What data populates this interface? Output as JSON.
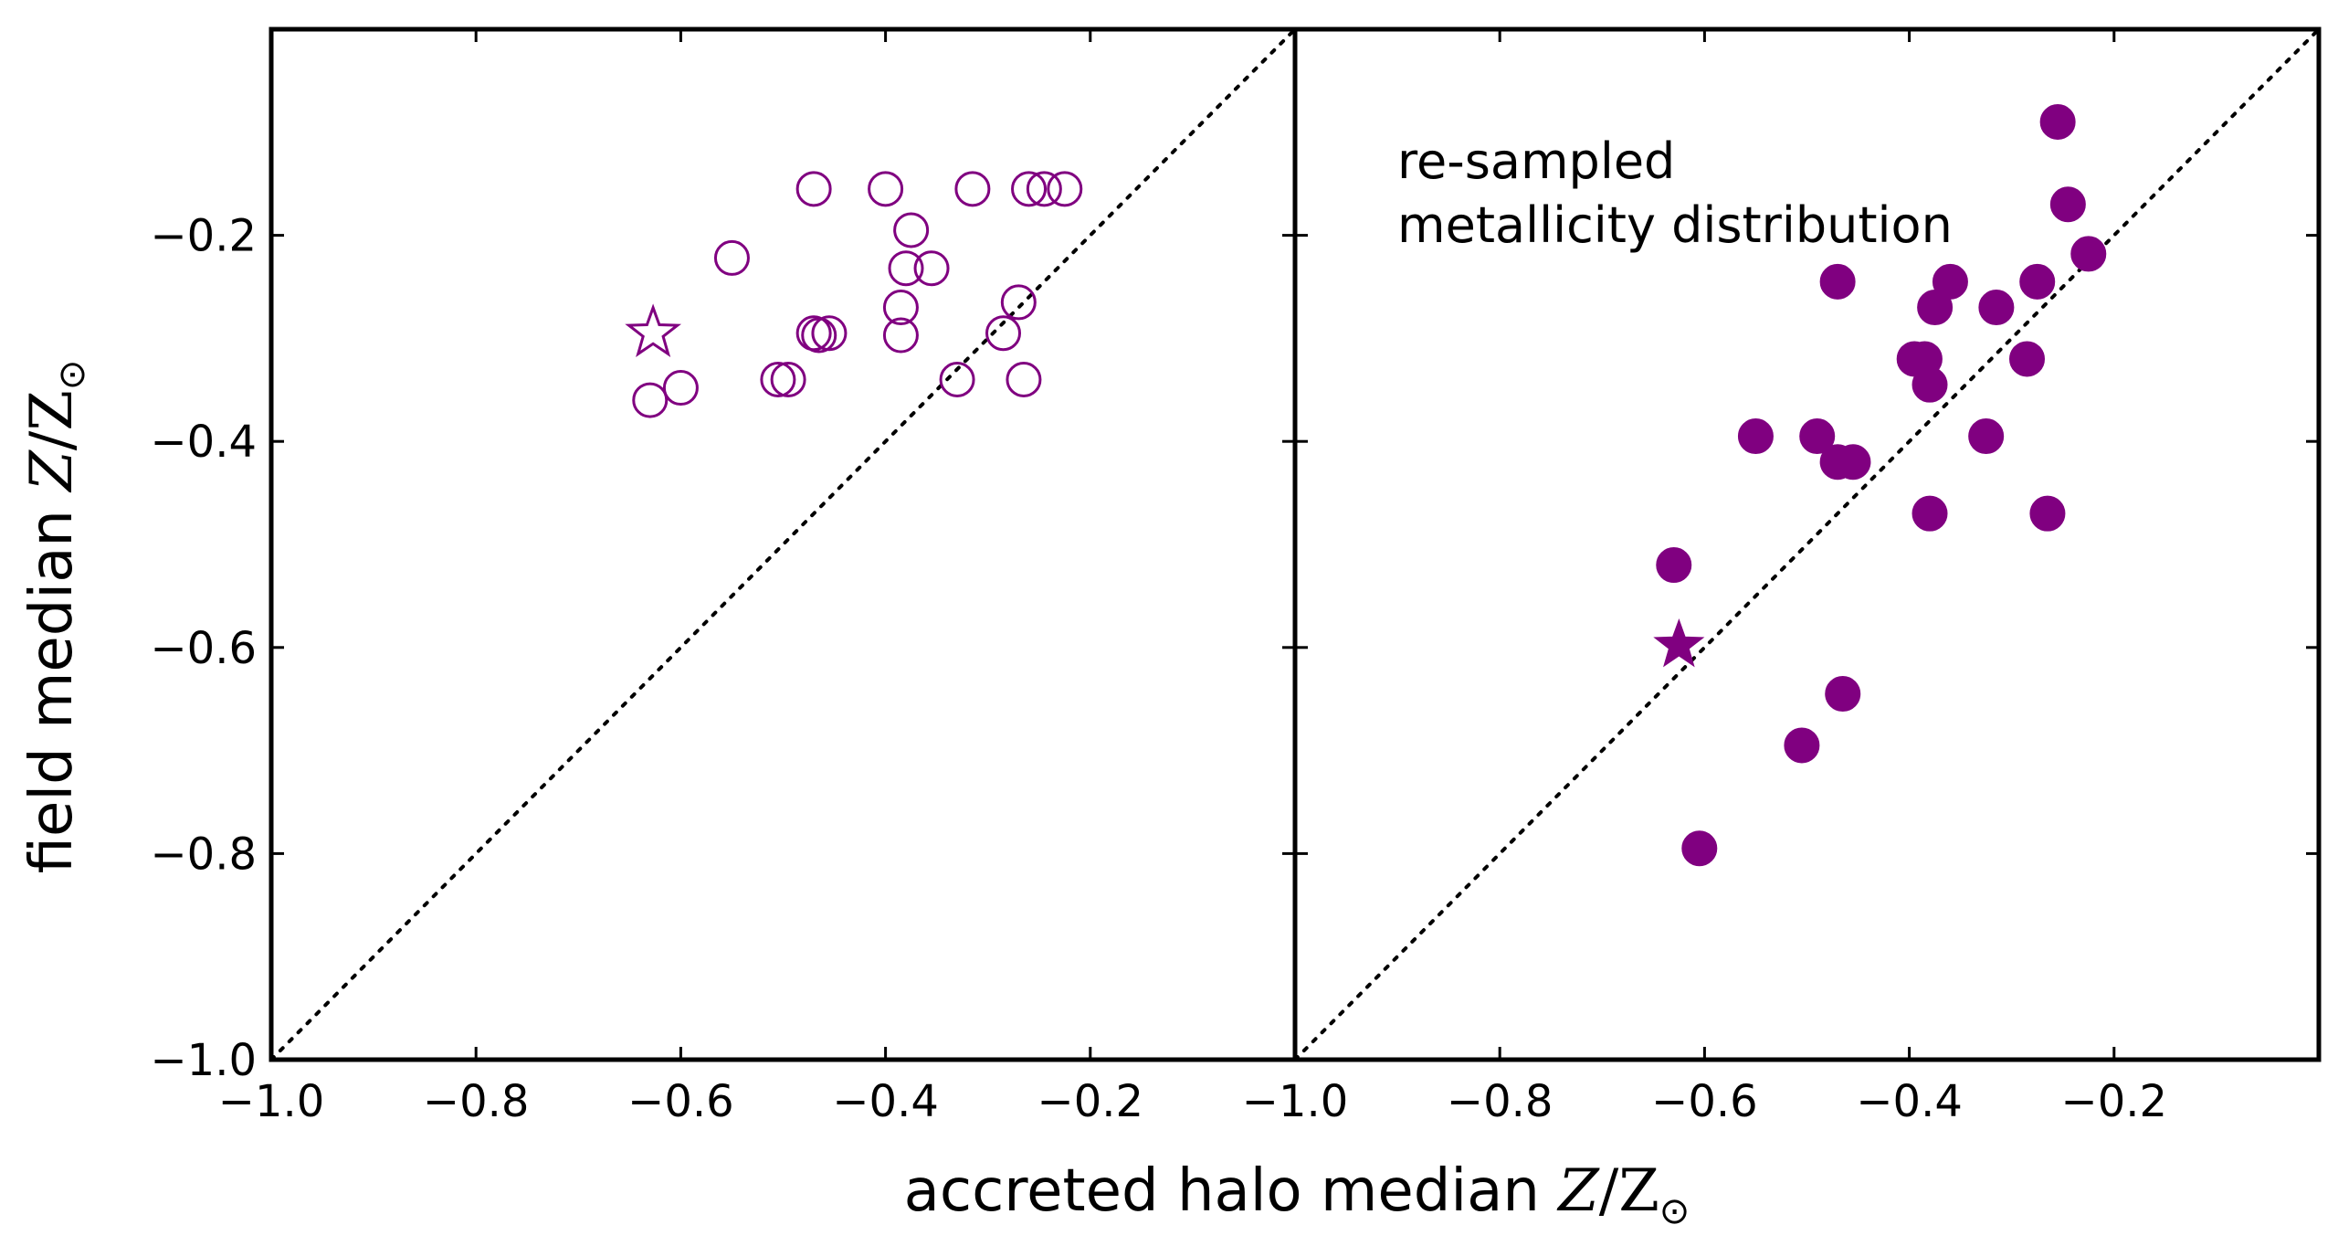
{
  "chart_data": [
    {
      "type": "scatter",
      "panel": "left",
      "marker": "open-circle",
      "xlim": [
        -1.0,
        0.0
      ],
      "ylim": [
        -1.0,
        0.0
      ],
      "xticks": [
        -1.0,
        -0.8,
        -0.6,
        -0.4,
        -0.2
      ],
      "yticks": [
        -1.0,
        -0.8,
        -0.6,
        -0.4,
        -0.2
      ],
      "xtick_labels": [
        "−1.0",
        "−0.8",
        "−0.6",
        "−0.4",
        "−0.2"
      ],
      "ytick_labels": [
        "−1.0",
        "−0.8",
        "−0.6",
        "−0.4",
        "−0.2"
      ],
      "reference_line": "y = x (dotted)",
      "points": [
        {
          "x": -0.47,
          "y": -0.155
        },
        {
          "x": -0.4,
          "y": -0.155
        },
        {
          "x": -0.315,
          "y": -0.155
        },
        {
          "x": -0.26,
          "y": -0.155
        },
        {
          "x": -0.245,
          "y": -0.155
        },
        {
          "x": -0.225,
          "y": -0.155
        },
        {
          "x": -0.375,
          "y": -0.195
        },
        {
          "x": -0.55,
          "y": -0.222
        },
        {
          "x": -0.38,
          "y": -0.232
        },
        {
          "x": -0.355,
          "y": -0.232
        },
        {
          "x": -0.385,
          "y": -0.27
        },
        {
          "x": -0.27,
          "y": -0.265
        },
        {
          "x": -0.47,
          "y": -0.295
        },
        {
          "x": -0.465,
          "y": -0.297
        },
        {
          "x": -0.455,
          "y": -0.295
        },
        {
          "x": -0.385,
          "y": -0.297
        },
        {
          "x": -0.285,
          "y": -0.295
        },
        {
          "x": -0.505,
          "y": -0.34
        },
        {
          "x": -0.495,
          "y": -0.34
        },
        {
          "x": -0.33,
          "y": -0.34
        },
        {
          "x": -0.265,
          "y": -0.34
        },
        {
          "x": -0.6,
          "y": -0.348
        },
        {
          "x": -0.63,
          "y": -0.36
        }
      ],
      "star": {
        "x": -0.627,
        "y": -0.295
      }
    },
    {
      "type": "scatter",
      "panel": "right",
      "marker": "filled-circle",
      "annotation": [
        "re-sampled",
        "metallicity distribution"
      ],
      "xlim": [
        -1.0,
        0.0
      ],
      "ylim": [
        -1.0,
        0.0
      ],
      "xticks": [
        -1.0,
        -0.8,
        -0.6,
        -0.4,
        -0.2
      ],
      "xtick_labels": [
        "−1.0",
        "−0.8",
        "−0.6",
        "−0.4",
        "−0.2"
      ],
      "reference_line": "y = x (dotted)",
      "points": [
        {
          "x": -0.255,
          "y": -0.09
        },
        {
          "x": -0.245,
          "y": -0.17
        },
        {
          "x": -0.225,
          "y": -0.218
        },
        {
          "x": -0.47,
          "y": -0.245
        },
        {
          "x": -0.36,
          "y": -0.245
        },
        {
          "x": -0.275,
          "y": -0.245
        },
        {
          "x": -0.375,
          "y": -0.27
        },
        {
          "x": -0.315,
          "y": -0.27
        },
        {
          "x": -0.395,
          "y": -0.32
        },
        {
          "x": -0.385,
          "y": -0.32
        },
        {
          "x": -0.285,
          "y": -0.32
        },
        {
          "x": -0.38,
          "y": -0.345
        },
        {
          "x": -0.55,
          "y": -0.395
        },
        {
          "x": -0.49,
          "y": -0.395
        },
        {
          "x": -0.325,
          "y": -0.395
        },
        {
          "x": -0.47,
          "y": -0.42
        },
        {
          "x": -0.455,
          "y": -0.42
        },
        {
          "x": -0.38,
          "y": -0.47
        },
        {
          "x": -0.265,
          "y": -0.47
        },
        {
          "x": -0.63,
          "y": -0.52
        },
        {
          "x": -0.465,
          "y": -0.645
        },
        {
          "x": -0.505,
          "y": -0.695
        },
        {
          "x": -0.605,
          "y": -0.795
        }
      ],
      "star": {
        "x": -0.625,
        "y": -0.598
      }
    }
  ],
  "labels": {
    "xlabel_text": "accreted halo median ",
    "ylabel_text": "field median ",
    "math_main": "Z",
    "math_slash": "/Z",
    "math_sub": "⊙"
  },
  "colors": {
    "marker": "#800080",
    "axis": "#000000"
  }
}
